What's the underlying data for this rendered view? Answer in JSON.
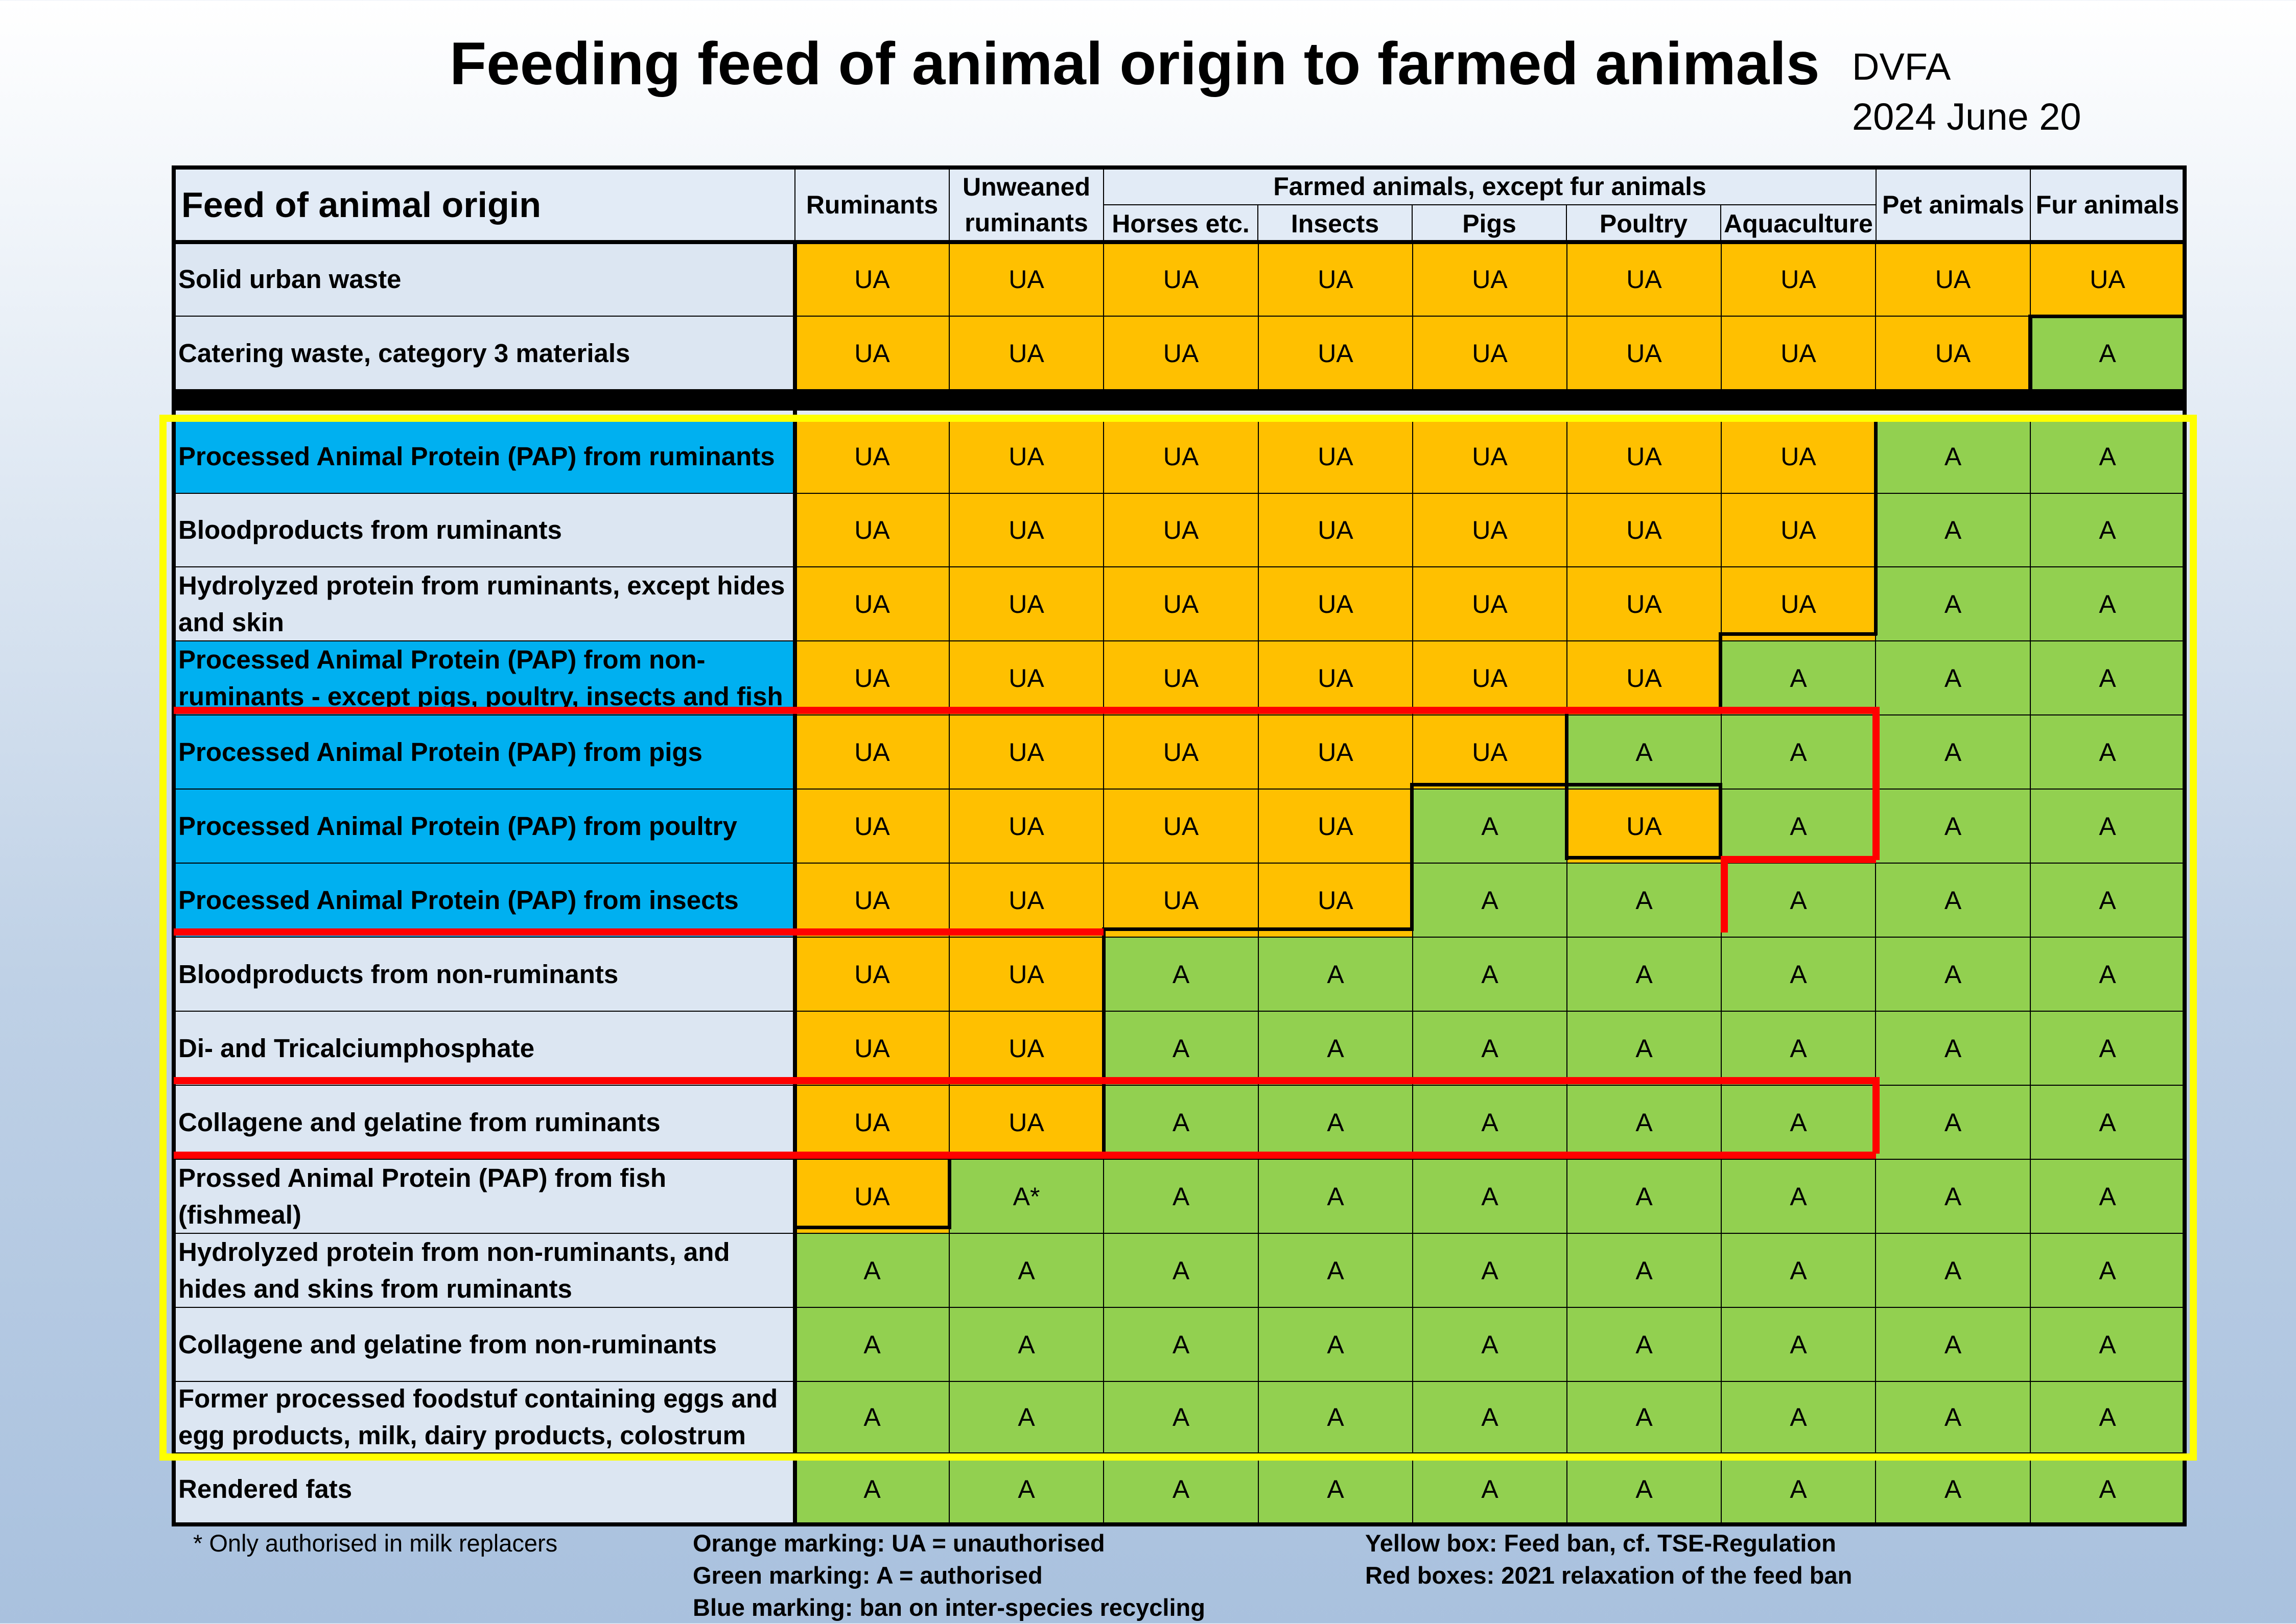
{
  "title": "Feeding feed of animal origin to farmed animals",
  "org": [
    "DVFA",
    "2024 June 20"
  ],
  "header": {
    "corner": "Feed of animal origin",
    "ruminants": "Ruminants",
    "unweaned": "Unweaned ruminants",
    "farmed_group": "Farmed animals, except fur animals",
    "horses": "Horses etc.",
    "insects": "Insects",
    "pigs": "Pigs",
    "poultry": "Poultry",
    "aquaculture": "Aquaculture",
    "pet": "Pet animals",
    "fur": "Fur animals"
  },
  "rows": [
    {
      "label": "Solid urban waste",
      "blue": false,
      "values": [
        "UA",
        "UA",
        "UA",
        "UA",
        "UA",
        "UA",
        "UA",
        "UA",
        "UA"
      ]
    },
    {
      "label": "Catering waste, category 3 materials",
      "blue": false,
      "values": [
        "UA",
        "UA",
        "UA",
        "UA",
        "UA",
        "UA",
        "UA",
        "UA",
        "A"
      ]
    },
    {
      "label": "Processed Animal Protein (PAP) from ruminants",
      "blue": true,
      "values": [
        "UA",
        "UA",
        "UA",
        "UA",
        "UA",
        "UA",
        "UA",
        "A",
        "A"
      ]
    },
    {
      "label": "Bloodproducts from ruminants",
      "blue": false,
      "values": [
        "UA",
        "UA",
        "UA",
        "UA",
        "UA",
        "UA",
        "UA",
        "A",
        "A"
      ]
    },
    {
      "label": "Hydrolyzed protein from ruminants, except hides and skin",
      "blue": false,
      "values": [
        "UA",
        "UA",
        "UA",
        "UA",
        "UA",
        "UA",
        "UA",
        "A",
        "A"
      ]
    },
    {
      "label": "Processed Animal Protein (PAP) from non-ruminants - except pigs, poultry, insects and fish",
      "blue": true,
      "values": [
        "UA",
        "UA",
        "UA",
        "UA",
        "UA",
        "UA",
        "A",
        "A",
        "A"
      ]
    },
    {
      "label": "Processed Animal Protein (PAP) from pigs",
      "blue": true,
      "values": [
        "UA",
        "UA",
        "UA",
        "UA",
        "UA",
        "A",
        "A",
        "A",
        "A"
      ]
    },
    {
      "label": "Processed Animal Protein (PAP) from poultry",
      "blue": true,
      "values": [
        "UA",
        "UA",
        "UA",
        "UA",
        "A",
        "UA",
        "A",
        "A",
        "A"
      ]
    },
    {
      "label": "Processed Animal Protein (PAP) from insects",
      "blue": true,
      "values": [
        "UA",
        "UA",
        "UA",
        "UA",
        "A",
        "A",
        "A",
        "A",
        "A"
      ]
    },
    {
      "label": "Bloodproducts from non-ruminants",
      "blue": false,
      "values": [
        "UA",
        "UA",
        "A",
        "A",
        "A",
        "A",
        "A",
        "A",
        "A"
      ]
    },
    {
      "label": "Di- and Tricalciumphosphate",
      "blue": false,
      "values": [
        "UA",
        "UA",
        "A",
        "A",
        "A",
        "A",
        "A",
        "A",
        "A"
      ]
    },
    {
      "label": "Collagene and gelatine from  ruminants",
      "blue": false,
      "values": [
        "UA",
        "UA",
        "A",
        "A",
        "A",
        "A",
        "A",
        "A",
        "A"
      ]
    },
    {
      "label": "Prossed Animal Protein (PAP) from fish (fishmeal)",
      "blue": false,
      "values": [
        "UA",
        "A*",
        "A",
        "A",
        "A",
        "A",
        "A",
        "A",
        "A"
      ]
    },
    {
      "label": "Hydrolyzed protein from non-ruminants, and hides and skins from ruminants",
      "blue": false,
      "values": [
        "A",
        "A",
        "A",
        "A",
        "A",
        "A",
        "A",
        "A",
        "A"
      ]
    },
    {
      "label": "Collagene and gelatine from non-ruminants",
      "blue": false,
      "values": [
        "A",
        "A",
        "A",
        "A",
        "A",
        "A",
        "A",
        "A",
        "A"
      ]
    },
    {
      "label": "Former processed foodstuf containing eggs and egg products, milk, dairy products, colostrum",
      "blue": false,
      "values": [
        "A",
        "A",
        "A",
        "A",
        "A",
        "A",
        "A",
        "A",
        "A"
      ]
    },
    {
      "label": "Rendered fats",
      "blue": false,
      "values": [
        "A",
        "A",
        "A",
        "A",
        "A",
        "A",
        "A",
        "A",
        "A"
      ]
    }
  ],
  "legend": {
    "footnote": "* Only authorised in milk replacers",
    "orange": "Orange marking: UA = unauthorised",
    "green": "Green marking: A = authorised",
    "blue": "Blue marking: ban on inter-species recycling",
    "yellow": "Yellow box: Feed ban, cf. TSE-Regulation",
    "red": "Red boxes: 2021 relaxation of the feed ban"
  },
  "colors": {
    "UA": "#ffc000",
    "A": "#92d050",
    "blue": "#00b0f0",
    "yellow_box": "#ffff00",
    "red_box": "#ff0000"
  }
}
